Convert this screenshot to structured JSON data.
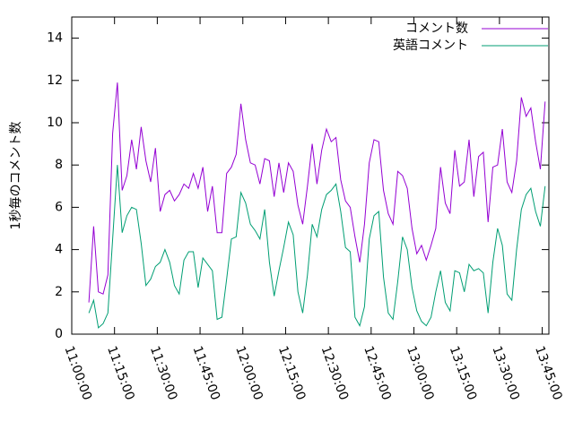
{
  "chart_data": {
    "type": "line",
    "y_label": "1秒毎のコメント数",
    "x": [
      "11:06:00",
      "11:07:40",
      "11:09:20",
      "11:11:00",
      "11:12:40",
      "11:14:20",
      "11:16:00",
      "11:17:40",
      "11:19:20",
      "11:21:00",
      "11:22:40",
      "11:24:20",
      "11:26:00",
      "11:27:40",
      "11:29:20",
      "11:31:00",
      "11:32:40",
      "11:34:20",
      "11:36:00",
      "11:37:40",
      "11:39:20",
      "11:41:00",
      "11:42:40",
      "11:44:20",
      "11:46:00",
      "11:47:40",
      "11:49:20",
      "11:51:00",
      "11:52:40",
      "11:54:20",
      "11:56:00",
      "11:57:40",
      "11:59:20",
      "12:01:00",
      "12:02:40",
      "12:04:20",
      "12:06:00",
      "12:07:40",
      "12:09:20",
      "12:11:00",
      "12:12:40",
      "12:14:20",
      "12:16:00",
      "12:17:40",
      "12:19:20",
      "12:21:00",
      "12:22:40",
      "12:24:20",
      "12:26:00",
      "12:27:40",
      "12:29:20",
      "12:31:00",
      "12:32:40",
      "12:34:20",
      "12:36:00",
      "12:37:40",
      "12:39:20",
      "12:41:00",
      "12:42:40",
      "12:44:20",
      "12:46:00",
      "12:47:40",
      "12:49:20",
      "12:51:00",
      "12:52:40",
      "12:54:20",
      "12:56:00",
      "12:57:40",
      "12:59:20",
      "13:01:00",
      "13:02:40",
      "13:04:20",
      "13:06:00",
      "13:07:40",
      "13:09:20",
      "13:11:00",
      "13:12:40",
      "13:14:20",
      "13:16:00",
      "13:17:40",
      "13:19:20",
      "13:21:00",
      "13:22:40",
      "13:24:20",
      "13:26:00",
      "13:27:40",
      "13:29:20",
      "13:31:00",
      "13:32:40",
      "13:34:20",
      "13:36:00",
      "13:37:40",
      "13:39:20",
      "13:41:00",
      "13:42:40",
      "13:44:20",
      "13:46:00"
    ],
    "series": [
      {
        "name": "コメント数",
        "color": "#9400d3",
        "values": [
          1.5,
          5.1,
          2.0,
          1.9,
          2.8,
          9.5,
          11.9,
          6.8,
          7.5,
          9.2,
          7.8,
          9.8,
          8.2,
          7.2,
          8.8,
          5.8,
          6.6,
          6.8,
          6.3,
          6.6,
          7.1,
          6.9,
          7.6,
          6.9,
          7.9,
          5.8,
          7.0,
          4.8,
          4.8,
          7.6,
          7.9,
          8.5,
          10.9,
          9.2,
          8.1,
          8.0,
          7.1,
          8.3,
          8.2,
          6.5,
          8.1,
          6.7,
          8.1,
          7.7,
          6.1,
          5.2,
          7.0,
          9.0,
          7.1,
          8.7,
          9.7,
          9.1,
          9.3,
          7.3,
          6.3,
          6.0,
          4.6,
          3.4,
          5.2,
          8.1,
          9.2,
          9.1,
          6.8,
          5.7,
          5.2,
          7.7,
          7.5,
          6.9,
          5.0,
          3.8,
          4.2,
          3.5,
          4.2,
          5.0,
          7.9,
          6.2,
          5.7,
          8.7,
          7.0,
          7.2,
          9.2,
          6.5,
          8.4,
          8.6,
          5.3,
          7.9,
          8.0,
          9.7,
          7.2,
          6.7,
          8.2,
          11.2,
          10.3,
          10.7,
          9.1,
          7.8,
          11.0
        ]
      },
      {
        "name": "英語コメント",
        "color": "#009e73",
        "values": [
          1.0,
          1.6,
          0.3,
          0.5,
          1.0,
          4.5,
          8.0,
          4.8,
          5.6,
          6.0,
          5.9,
          4.3,
          2.3,
          2.6,
          3.2,
          3.4,
          4.0,
          3.4,
          2.3,
          1.9,
          3.5,
          3.9,
          3.9,
          2.2,
          3.6,
          3.3,
          3.0,
          0.7,
          0.8,
          2.6,
          4.5,
          4.6,
          6.7,
          6.2,
          5.2,
          4.9,
          4.5,
          5.9,
          3.4,
          1.8,
          3.0,
          4.1,
          5.3,
          4.7,
          2.0,
          1.0,
          2.8,
          5.2,
          4.6,
          5.9,
          6.6,
          6.8,
          7.1,
          5.8,
          4.1,
          3.9,
          0.8,
          0.4,
          1.3,
          4.5,
          5.6,
          5.8,
          2.7,
          1.0,
          0.7,
          2.5,
          4.6,
          4.0,
          2.2,
          1.1,
          0.6,
          0.4,
          0.8,
          2.0,
          3.0,
          1.5,
          1.1,
          3.0,
          2.9,
          2.0,
          3.3,
          3.0,
          3.1,
          2.9,
          1.0,
          3.4,
          5.0,
          4.2,
          1.9,
          1.6,
          4.0,
          5.9,
          6.6,
          6.9,
          5.8,
          5.1,
          7.0
        ]
      }
    ],
    "xlim": [
      "11:00:00",
      "13:47:20"
    ],
    "xticks": [
      "11:00:00",
      "11:15:00",
      "11:30:00",
      "11:45:00",
      "12:00:00",
      "12:15:00",
      "12:30:00",
      "12:45:00",
      "13:00:00",
      "13:15:00",
      "13:30:00",
      "13:45:00"
    ],
    "ylim": [
      0,
      15
    ],
    "yticks": [
      0,
      2,
      4,
      6,
      8,
      10,
      12,
      14
    ],
    "legend": "top-right"
  }
}
